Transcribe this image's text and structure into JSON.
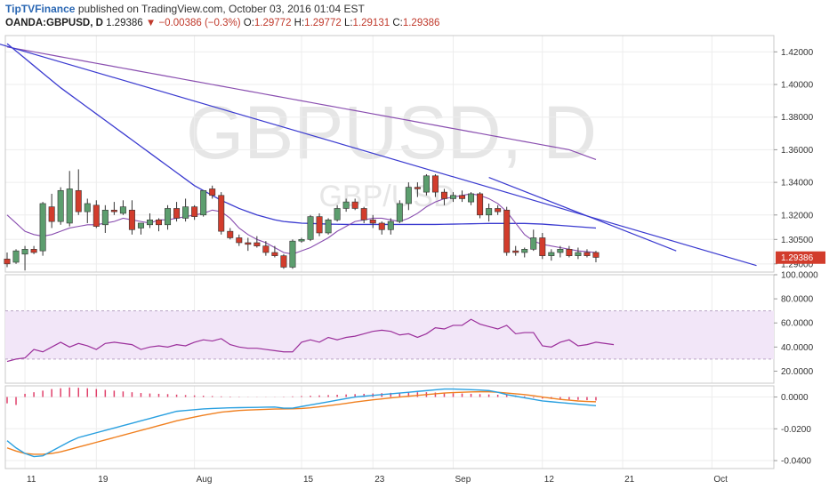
{
  "header": {
    "author": "TipTVFinance",
    "published": "published on TradingView.com, October 03, 2016 01:04 EST",
    "symbol": "OANDA:GBPUSD, D",
    "last": "1.29386",
    "change": "−0.00386 (−0.3%)",
    "open_label": "O:",
    "open": "1.29772",
    "high_label": "H:",
    "high": "1.29772",
    "low_label": "L:",
    "low": "1.29131",
    "close_label": "C:",
    "close": "1.29386"
  },
  "watermark": {
    "big": "GBPUSD, D",
    "small": "GBP/USD"
  },
  "colors": {
    "up": "#5c9e6e",
    "down": "#d23c2c",
    "ma_fast": "#3b3bd0",
    "ma_slow": "#8a4fb0",
    "rsi": "#9b2f9b",
    "rsi_band": "#f2e6f8",
    "macd": "#2aa0e0",
    "signal": "#f08020",
    "hist": "#e0406a",
    "price_label_bg": "#d23c2c"
  },
  "chart_data": {
    "type": "candlestick",
    "x_tick_labels": [
      "11",
      "19",
      "Aug",
      "15",
      "23",
      "Sep",
      "12",
      "21",
      "Oct"
    ],
    "price_axis": {
      "ticks": [
        "1.42000",
        "1.40000",
        "1.38000",
        "1.36000",
        "1.34000",
        "1.32000",
        "1.30500",
        "1.29000"
      ],
      "ylim": [
        1.285,
        1.43
      ],
      "last_price_label": "1.29386"
    },
    "candles": [
      {
        "o": 1.293,
        "h": 1.297,
        "l": 1.288,
        "c": 1.29
      },
      {
        "o": 1.291,
        "h": 1.299,
        "l": 1.29,
        "c": 1.298
      },
      {
        "o": 1.296,
        "h": 1.301,
        "l": 1.286,
        "c": 1.299
      },
      {
        "o": 1.299,
        "h": 1.301,
        "l": 1.296,
        "c": 1.297
      },
      {
        "o": 1.298,
        "h": 1.328,
        "l": 1.295,
        "c": 1.327
      },
      {
        "o": 1.325,
        "h": 1.333,
        "l": 1.312,
        "c": 1.316
      },
      {
        "o": 1.316,
        "h": 1.337,
        "l": 1.314,
        "c": 1.335
      },
      {
        "o": 1.315,
        "h": 1.347,
        "l": 1.313,
        "c": 1.336
      },
      {
        "o": 1.335,
        "h": 1.348,
        "l": 1.32,
        "c": 1.322
      },
      {
        "o": 1.322,
        "h": 1.33,
        "l": 1.315,
        "c": 1.327
      },
      {
        "o": 1.326,
        "h": 1.329,
        "l": 1.312,
        "c": 1.313
      },
      {
        "o": 1.314,
        "h": 1.326,
        "l": 1.309,
        "c": 1.323
      },
      {
        "o": 1.323,
        "h": 1.328,
        "l": 1.32,
        "c": 1.322
      },
      {
        "o": 1.321,
        "h": 1.329,
        "l": 1.32,
        "c": 1.325
      },
      {
        "o": 1.323,
        "h": 1.329,
        "l": 1.308,
        "c": 1.311
      },
      {
        "o": 1.312,
        "h": 1.315,
        "l": 1.308,
        "c": 1.315
      },
      {
        "o": 1.314,
        "h": 1.321,
        "l": 1.312,
        "c": 1.317
      },
      {
        "o": 1.317,
        "h": 1.318,
        "l": 1.31,
        "c": 1.314
      },
      {
        "o": 1.314,
        "h": 1.326,
        "l": 1.311,
        "c": 1.324
      },
      {
        "o": 1.324,
        "h": 1.328,
        "l": 1.316,
        "c": 1.318
      },
      {
        "o": 1.318,
        "h": 1.33,
        "l": 1.316,
        "c": 1.325
      },
      {
        "o": 1.325,
        "h": 1.326,
        "l": 1.317,
        "c": 1.319
      },
      {
        "o": 1.32,
        "h": 1.335,
        "l": 1.319,
        "c": 1.335
      },
      {
        "o": 1.336,
        "h": 1.338,
        "l": 1.33,
        "c": 1.332
      },
      {
        "o": 1.332,
        "h": 1.334,
        "l": 1.308,
        "c": 1.31
      },
      {
        "o": 1.31,
        "h": 1.312,
        "l": 1.305,
        "c": 1.306
      },
      {
        "o": 1.306,
        "h": 1.308,
        "l": 1.301,
        "c": 1.303
      },
      {
        "o": 1.303,
        "h": 1.306,
        "l": 1.298,
        "c": 1.302
      },
      {
        "o": 1.303,
        "h": 1.307,
        "l": 1.3,
        "c": 1.301
      },
      {
        "o": 1.301,
        "h": 1.304,
        "l": 1.295,
        "c": 1.297
      },
      {
        "o": 1.297,
        "h": 1.301,
        "l": 1.294,
        "c": 1.295
      },
      {
        "o": 1.295,
        "h": 1.296,
        "l": 1.287,
        "c": 1.288
      },
      {
        "o": 1.288,
        "h": 1.305,
        "l": 1.287,
        "c": 1.304
      },
      {
        "o": 1.304,
        "h": 1.306,
        "l": 1.303,
        "c": 1.305
      },
      {
        "o": 1.305,
        "h": 1.32,
        "l": 1.304,
        "c": 1.319
      },
      {
        "o": 1.319,
        "h": 1.321,
        "l": 1.307,
        "c": 1.309
      },
      {
        "o": 1.309,
        "h": 1.318,
        "l": 1.308,
        "c": 1.317
      },
      {
        "o": 1.317,
        "h": 1.326,
        "l": 1.316,
        "c": 1.324
      },
      {
        "o": 1.324,
        "h": 1.33,
        "l": 1.322,
        "c": 1.328
      },
      {
        "o": 1.328,
        "h": 1.33,
        "l": 1.323,
        "c": 1.324
      },
      {
        "o": 1.324,
        "h": 1.325,
        "l": 1.315,
        "c": 1.317
      },
      {
        "o": 1.317,
        "h": 1.32,
        "l": 1.312,
        "c": 1.315
      },
      {
        "o": 1.315,
        "h": 1.316,
        "l": 1.308,
        "c": 1.311
      },
      {
        "o": 1.311,
        "h": 1.318,
        "l": 1.308,
        "c": 1.316
      },
      {
        "o": 1.316,
        "h": 1.329,
        "l": 1.315,
        "c": 1.327
      },
      {
        "o": 1.327,
        "h": 1.34,
        "l": 1.323,
        "c": 1.337
      },
      {
        "o": 1.337,
        "h": 1.34,
        "l": 1.331,
        "c": 1.336
      },
      {
        "o": 1.334,
        "h": 1.345,
        "l": 1.332,
        "c": 1.344
      },
      {
        "o": 1.344,
        "h": 1.345,
        "l": 1.331,
        "c": 1.334
      },
      {
        "o": 1.334,
        "h": 1.336,
        "l": 1.326,
        "c": 1.33
      },
      {
        "o": 1.33,
        "h": 1.334,
        "l": 1.328,
        "c": 1.332
      },
      {
        "o": 1.332,
        "h": 1.335,
        "l": 1.328,
        "c": 1.33
      },
      {
        "o": 1.328,
        "h": 1.334,
        "l": 1.326,
        "c": 1.333
      },
      {
        "o": 1.333,
        "h": 1.334,
        "l": 1.318,
        "c": 1.32
      },
      {
        "o": 1.32,
        "h": 1.327,
        "l": 1.316,
        "c": 1.324
      },
      {
        "o": 1.324,
        "h": 1.326,
        "l": 1.32,
        "c": 1.322
      },
      {
        "o": 1.323,
        "h": 1.325,
        "l": 1.295,
        "c": 1.297
      },
      {
        "o": 1.298,
        "h": 1.301,
        "l": 1.295,
        "c": 1.297
      },
      {
        "o": 1.297,
        "h": 1.3,
        "l": 1.294,
        "c": 1.299
      },
      {
        "o": 1.299,
        "h": 1.311,
        "l": 1.298,
        "c": 1.306
      },
      {
        "o": 1.306,
        "h": 1.309,
        "l": 1.293,
        "c": 1.295
      },
      {
        "o": 1.295,
        "h": 1.299,
        "l": 1.292,
        "c": 1.297
      },
      {
        "o": 1.297,
        "h": 1.301,
        "l": 1.294,
        "c": 1.299
      },
      {
        "o": 1.299,
        "h": 1.301,
        "l": 1.294,
        "c": 1.295
      },
      {
        "o": 1.295,
        "h": 1.3,
        "l": 1.293,
        "c": 1.297
      },
      {
        "o": 1.297,
        "h": 1.299,
        "l": 1.294,
        "c": 1.295
      },
      {
        "o": 1.297,
        "h": 1.298,
        "l": 1.291,
        "c": 1.294
      }
    ],
    "trendlines": [
      {
        "from": [
          -1,
          1.425
        ],
        "to": [
          84,
          1.289
        ]
      },
      {
        "from": [
          54,
          1.343
        ],
        "to": [
          75,
          1.298
        ]
      }
    ],
    "ma_fast": [
      1.425,
      1.4205,
      1.416,
      1.4115,
      1.407,
      1.4025,
      1.398,
      1.394,
      1.39,
      1.386,
      1.382,
      1.378,
      1.374,
      1.37,
      1.366,
      1.362,
      1.358,
      1.354,
      1.35,
      1.346,
      1.342,
      1.338,
      1.335,
      1.332,
      1.329,
      1.3265,
      1.324,
      1.322,
      1.32,
      1.3185,
      1.317,
      1.316,
      1.3155,
      1.315,
      1.3148,
      1.3146,
      1.3144,
      1.3143,
      1.3142,
      1.3142,
      1.3142,
      1.3142,
      1.3142,
      1.3142,
      1.3142,
      1.3142,
      1.3142,
      1.3142,
      1.3142,
      1.3143,
      1.3144,
      1.3145,
      1.3146,
      1.3147,
      1.3148,
      1.3148,
      1.3148,
      1.3148,
      1.3148,
      1.3146,
      1.3144,
      1.314,
      1.3136,
      1.3132,
      1.3128,
      1.3124,
      1.312
    ],
    "ma_slow": [
      1.423,
      1.422,
      1.421,
      1.42,
      1.419,
      1.418,
      1.417,
      1.416,
      1.415,
      1.414,
      1.413,
      1.412,
      1.411,
      1.41,
      1.409,
      1.408,
      1.407,
      1.406,
      1.405,
      1.404,
      1.403,
      1.402,
      1.401,
      1.4,
      1.399,
      1.398,
      1.397,
      1.396,
      1.395,
      1.394,
      1.393,
      1.392,
      1.391,
      1.39,
      1.389,
      1.388,
      1.387,
      1.386,
      1.385,
      1.384,
      1.383,
      1.382,
      1.381,
      1.38,
      1.379,
      1.378,
      1.377,
      1.376,
      1.375,
      1.374,
      1.373,
      1.372,
      1.371,
      1.37,
      1.369,
      1.368,
      1.367,
      1.366,
      1.365,
      1.364,
      1.363,
      1.362,
      1.361,
      1.36,
      1.358,
      1.356,
      1.354
    ],
    "ma_short": [
      1.32,
      1.315,
      1.31,
      1.308,
      1.307,
      1.308,
      1.31,
      1.312,
      1.313,
      1.314,
      1.314,
      1.315,
      1.316,
      1.318,
      1.317,
      1.316,
      1.315,
      1.317,
      1.317,
      1.318,
      1.319,
      1.32,
      1.321,
      1.323,
      1.322,
      1.318,
      1.312,
      1.308,
      1.305,
      1.303,
      1.3,
      1.297,
      1.296,
      1.298,
      1.3,
      1.303,
      1.306,
      1.31,
      1.313,
      1.316,
      1.317,
      1.318,
      1.318,
      1.317,
      1.316,
      1.318,
      1.321,
      1.325,
      1.328,
      1.33,
      1.331,
      1.332,
      1.333,
      1.332,
      1.33,
      1.327,
      1.322,
      1.315,
      1.308,
      1.304,
      1.302,
      1.301,
      1.3,
      1.299,
      1.298,
      1.2975,
      1.297
    ],
    "rsi": {
      "ticks": [
        "100.0000",
        "80.0000",
        "60.0000",
        "40.0000",
        "20.0000"
      ],
      "ylim": [
        10,
        100
      ],
      "band": [
        30,
        70
      ],
      "values": [
        28,
        30,
        31,
        38,
        36,
        40,
        44,
        40,
        43,
        41,
        38,
        43,
        44,
        43,
        42,
        38,
        40,
        41,
        40,
        42,
        41,
        44,
        46,
        45,
        47,
        42,
        40,
        39,
        39,
        38,
        37,
        36,
        36,
        44,
        46,
        44,
        48,
        46,
        48,
        49,
        51,
        53,
        54,
        53,
        50,
        51,
        48,
        51,
        56,
        55,
        58,
        58,
        63,
        59,
        57,
        55,
        58,
        51,
        52,
        52,
        41,
        40,
        44,
        46,
        41,
        42,
        44,
        43,
        42
      ],
      "color": "#9b2f9b"
    },
    "macd": {
      "ticks": [
        "0.0000",
        "-0.0200",
        "-0.0400"
      ],
      "ylim": [
        -0.045,
        0.007
      ],
      "macd": [
        -0.0275,
        -0.032,
        -0.0355,
        -0.0375,
        -0.037,
        -0.034,
        -0.031,
        -0.028,
        -0.0255,
        -0.024,
        -0.0225,
        -0.021,
        -0.0195,
        -0.018,
        -0.0165,
        -0.015,
        -0.0135,
        -0.012,
        -0.0105,
        -0.009,
        -0.0085,
        -0.008,
        -0.0075,
        -0.0072,
        -0.007,
        -0.0068,
        -0.0067,
        -0.0066,
        -0.0065,
        -0.0064,
        -0.0063,
        -0.007,
        -0.007,
        -0.006,
        -0.005,
        -0.004,
        -0.003,
        -0.002,
        -0.001,
        0.0,
        0.0005,
        0.001,
        0.0015,
        0.002,
        0.0025,
        0.003,
        0.0035,
        0.004,
        0.0045,
        0.005,
        0.005,
        0.0048,
        0.0046,
        0.0044,
        0.004,
        0.003,
        0.0015,
        0.0005,
        -0.0005,
        -0.0015,
        -0.0025,
        -0.003,
        -0.0035,
        -0.004,
        -0.0045,
        -0.005,
        -0.0055
      ],
      "signal": [
        -0.032,
        -0.034,
        -0.0355,
        -0.036,
        -0.036,
        -0.0355,
        -0.0345,
        -0.033,
        -0.0315,
        -0.03,
        -0.0285,
        -0.027,
        -0.0255,
        -0.024,
        -0.0225,
        -0.021,
        -0.0195,
        -0.018,
        -0.0165,
        -0.015,
        -0.0138,
        -0.0126,
        -0.0115,
        -0.0105,
        -0.0095,
        -0.009,
        -0.0085,
        -0.0082,
        -0.008,
        -0.0078,
        -0.0076,
        -0.0075,
        -0.0074,
        -0.0072,
        -0.0068,
        -0.0062,
        -0.0055,
        -0.0048,
        -0.004,
        -0.0032,
        -0.0025,
        -0.0018,
        -0.0012,
        -0.0006,
        0.0,
        0.0005,
        0.001,
        0.0015,
        0.002,
        0.0025,
        0.0028,
        0.003,
        0.0032,
        0.0033,
        0.0033,
        0.003,
        0.0025,
        0.002,
        0.0015,
        0.0008,
        0.0,
        -0.0008,
        -0.0015,
        -0.002,
        -0.0025,
        -0.0028,
        -0.003
      ],
      "histogram": [
        -0.004,
        -0.005,
        0.002,
        0.003,
        0.004,
        0.005,
        0.0055,
        0.006,
        0.0058,
        0.0055,
        0.005,
        0.0045,
        0.004,
        0.0035,
        0.003,
        0.0025,
        0.0022,
        0.002,
        0.0018,
        0.0015,
        0.0012,
        0.001,
        0.0008,
        0.0006,
        0.0004,
        0.0003,
        0.0002,
        0.0001,
        0.0001,
        0.0001,
        0.0001,
        0.0002,
        0.0004,
        0.0006,
        0.0008,
        0.001,
        0.0012,
        0.0014,
        0.0016,
        0.0018,
        0.002,
        0.0022,
        0.0024,
        0.0026,
        0.0028,
        0.003,
        0.003,
        0.003,
        0.0028,
        0.0026,
        0.0024,
        0.0022,
        0.002,
        0.0018,
        0.0016,
        0.0014,
        0.0012,
        0.001,
        0.0005,
        -0.0005,
        -0.001,
        -0.0012,
        -0.0014,
        -0.0016,
        -0.0018,
        -0.002,
        -0.0022
      ]
    }
  }
}
